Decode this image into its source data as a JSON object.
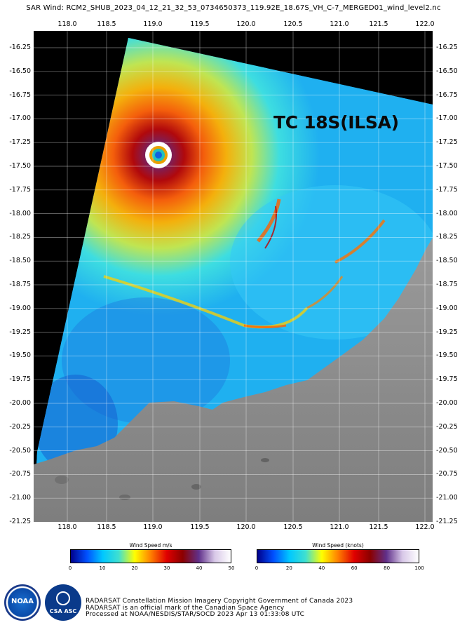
{
  "title": "SAR Wind: RCM2_SHUB_2023_04_12_21_32_53_0734650373_119.92E_18.67S_VH_C-7_MERGED01_wind_level2.nc",
  "x_ticks": [
    "118.0",
    "118.5",
    "119.0",
    "119.5",
    "120.0",
    "120.5",
    "121.0",
    "121.5",
    "122.0"
  ],
  "y_ticks": [
    "-16.25",
    "-16.50",
    "-16.75",
    "-17.00",
    "-17.25",
    "-17.50",
    "-17.75",
    "-18.00",
    "-18.25",
    "-18.50",
    "-18.75",
    "-19.00",
    "-19.25",
    "-19.50",
    "-19.75",
    "-20.00",
    "-20.25",
    "-20.50",
    "-20.75",
    "-21.00",
    "-21.25"
  ],
  "storm_label": "TC 18S(ILSA)",
  "colorbar_ms": {
    "title": "Wind Speed m/s",
    "ticks": [
      "0",
      "10",
      "20",
      "30",
      "40",
      "50"
    ]
  },
  "colorbar_kt": {
    "title": "Wind Speed (knots)",
    "ticks": [
      "0",
      "20",
      "40",
      "60",
      "80",
      "100"
    ]
  },
  "logos": {
    "noaa": "NOAA",
    "csa": "CSA ASC"
  },
  "credits": [
    "RADARSAT Constellation Mission Imagery Copyright Government of Canada 2023",
    "RADARSAT is an official mark of the Canadian Space Agency",
    "Processed at NOAA/NESDIS/STAR/SOCD 2023 Apr 13 01:33:08 UTC"
  ],
  "colors": {
    "ocean_background": "#000000",
    "land": "#8c8c8c",
    "low_wind": "#1e90ff",
    "high_wind": "#c00000"
  }
}
